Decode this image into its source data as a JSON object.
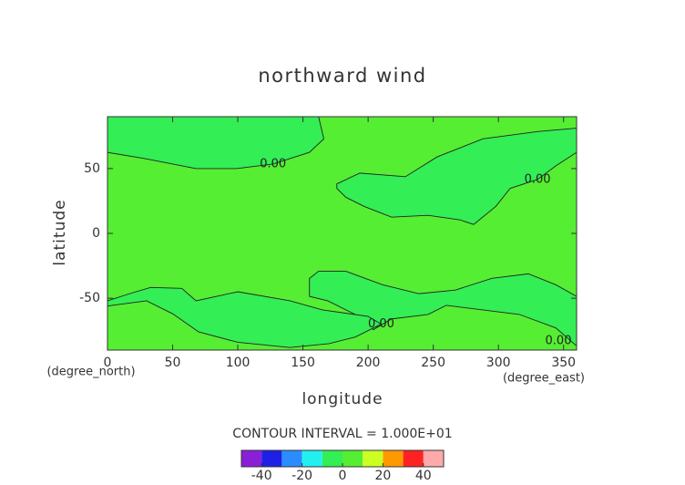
{
  "chart_data": {
    "type": "contour",
    "title": "northward wind",
    "x_label": "longitude",
    "y_label": "latitude",
    "x_unit": "(degree_east)",
    "y_unit": "(degree_north)",
    "xlim": [
      0,
      360
    ],
    "ylim": [
      -90,
      90
    ],
    "xticks": [
      0,
      50,
      100,
      150,
      200,
      250,
      300,
      350
    ],
    "yticks": [
      -50,
      0,
      50
    ],
    "field_color": "#55ee33",
    "region_color": "#33ee55",
    "contours": [
      {
        "level": 0,
        "label": "0.00",
        "lon": [
          0,
          29,
          68,
          99,
          127,
          155,
          166,
          162,
          0
        ],
        "lat": [
          62.5,
          57.6,
          50,
          50,
          53.5,
          62.5,
          72.9,
          90,
          90
        ]
      },
      {
        "level": 0,
        "label": "0.00",
        "lon": [
          176,
          193.6,
          228.6,
          253,
          288,
          330,
          360,
          360,
          344,
          330,
          309,
          298,
          281,
          270.5,
          246,
          218,
          197,
          183,
          176
        ],
        "lat": [
          38.2,
          46.5,
          43.7,
          59,
          72.9,
          78.5,
          81.2,
          62.5,
          52,
          41.6,
          34.7,
          20.8,
          6.9,
          10.4,
          13.9,
          12.5,
          20.8,
          27.8,
          34.7
        ]
      },
      {
        "level": 0,
        "label": "0.00",
        "lon": [
          155,
          162,
          183,
          211,
          239,
          267,
          295,
          323,
          344,
          360,
          360,
          344,
          316,
          288,
          260,
          246,
          218,
          204,
          190,
          169,
          155
        ],
        "lat": [
          -34.7,
          -29.2,
          -29.2,
          -39.6,
          -46.5,
          -43.7,
          -34.7,
          -31.2,
          -39.6,
          -48.6,
          -86.8,
          -72.9,
          -62.5,
          -59,
          -55.5,
          -62.5,
          -66,
          -74.3,
          -62.5,
          -52,
          -48.6
        ]
      },
      {
        "level": 0,
        "label": "0.00",
        "lon": [
          0,
          17,
          33,
          57,
          68,
          100,
          140,
          165,
          200,
          210,
          190,
          170,
          140,
          100,
          70,
          50,
          30,
          15,
          0
        ],
        "lat": [
          -52,
          -46.5,
          -41.7,
          -42.4,
          -52,
          -45,
          -52,
          -59,
          -64,
          -70,
          -80,
          -85,
          -88,
          -84,
          -76,
          -62,
          -52,
          -54,
          -56
        ]
      }
    ],
    "colorbar": {
      "title": "CONTOUR INTERVAL = 1.000E+01",
      "levels": [
        -50,
        -40,
        -30,
        -20,
        -10,
        0,
        10,
        20,
        30,
        40,
        50
      ],
      "colors": [
        "#8a1fd8",
        "#1f1fe6",
        "#2b8cff",
        "#22f0f0",
        "#33ee55",
        "#55ee33",
        "#ccff22",
        "#ff9900",
        "#ff2222",
        "#ffaaaa"
      ],
      "ticks": [
        -40,
        -20,
        0,
        20,
        40
      ]
    }
  }
}
